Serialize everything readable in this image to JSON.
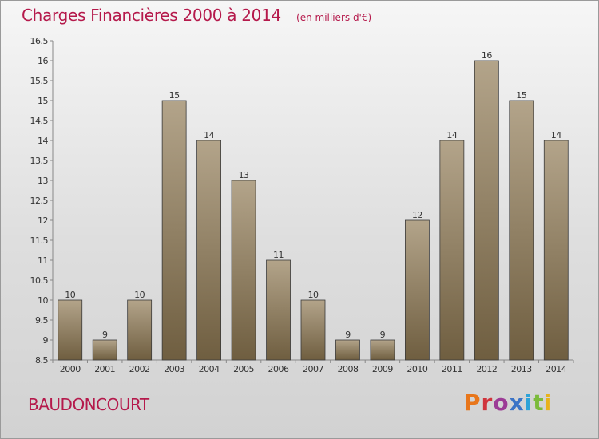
{
  "header": {
    "title": "Charges Financières 2000 à 2014",
    "subtitle": "(en milliers d'€)"
  },
  "footer": {
    "commune": "BAUDONCOURT",
    "logo_text": "Proxiti"
  },
  "colors": {
    "title": "#b5194b",
    "bar_light": "#b3a48a",
    "bar_dark": "#6f5e40",
    "logo_letters": [
      "#e8761b",
      "#d0343c",
      "#9c3b96",
      "#3b73c6",
      "#2ea3d8",
      "#7bbb3b",
      "#e8b21b"
    ]
  },
  "chart_data": {
    "type": "bar",
    "title": "Charges Financières 2000 à 2014",
    "subtitle": "(en milliers d'€)",
    "categories": [
      "2000",
      "2001",
      "2002",
      "2003",
      "2004",
      "2005",
      "2006",
      "2007",
      "2008",
      "2009",
      "2010",
      "2011",
      "2012",
      "2013",
      "2014"
    ],
    "values": [
      10,
      9,
      10,
      15,
      14,
      13,
      11,
      10,
      9,
      9,
      12,
      14,
      16,
      15,
      14
    ],
    "ylim": [
      8.5,
      16.5
    ],
    "yticks": [
      8.5,
      9,
      9.5,
      10,
      10.5,
      11,
      11.5,
      12,
      12.5,
      13,
      13.5,
      14,
      14.5,
      15,
      15.5,
      16,
      16.5
    ],
    "ytick_labels": [
      "8.5",
      "9",
      "9.5",
      "10",
      "10.5",
      "11",
      "11.5",
      "12",
      "12.5",
      "13",
      "13.5",
      "14",
      "14.5",
      "15",
      "15.5",
      "16",
      "16.5"
    ],
    "xlabel": "",
    "ylabel": "",
    "grid": false,
    "legend": "none"
  }
}
